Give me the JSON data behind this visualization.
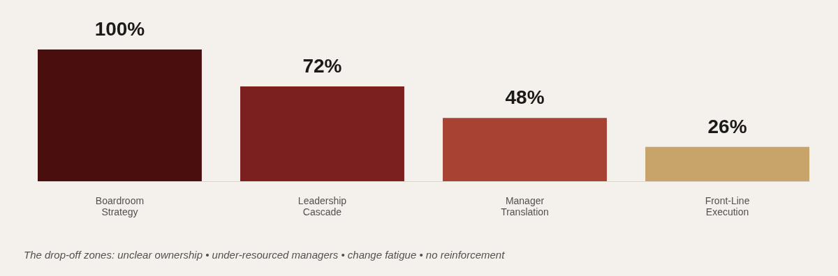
{
  "chart_data": {
    "type": "bar",
    "categories": [
      "Boardroom Strategy",
      "Leadership Cascade",
      "Manager Translation",
      "Front-Line Execution"
    ],
    "values": [
      100,
      72,
      48,
      26
    ],
    "colors": [
      "#4a0e0e",
      "#7b1f1f",
      "#a84232",
      "#c8a46a"
    ],
    "value_labels": [
      "100%",
      "72%",
      "48%",
      "26%"
    ],
    "ylim": [
      0,
      100
    ],
    "grid": false,
    "annotations": [
      "The drop-off zones: unclear ownership  •  under-resourced managers  •  change fatigue  •  no reinforcement"
    ]
  }
}
